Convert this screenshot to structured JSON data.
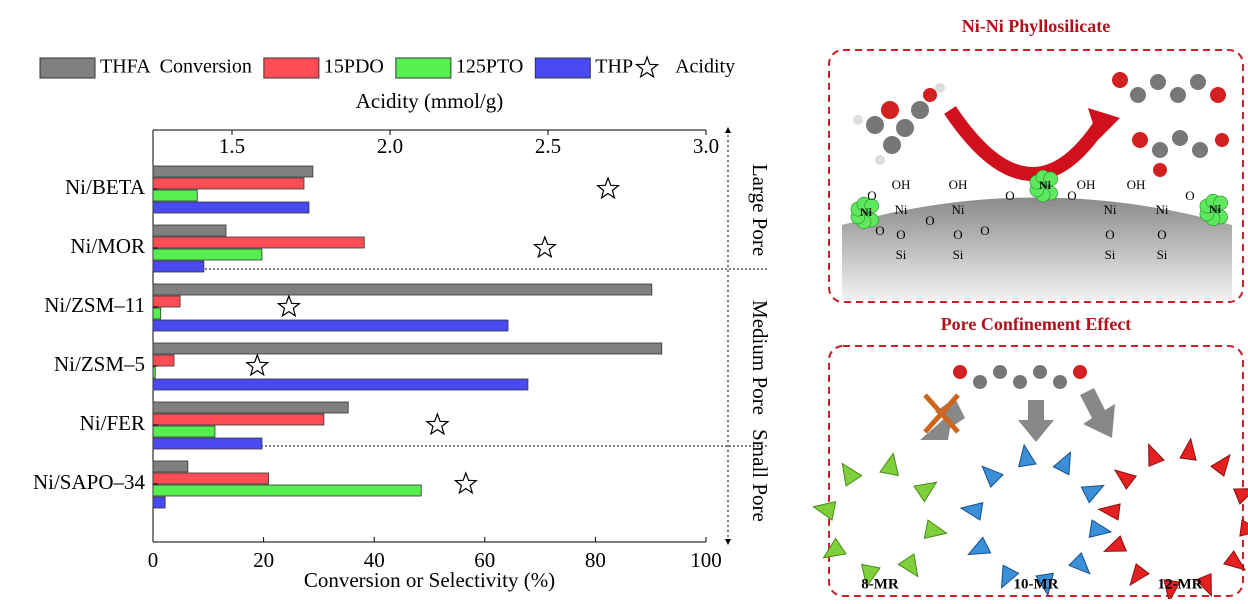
{
  "chart_data": {
    "type": "bar",
    "orientation": "horizontal",
    "xlabel": "Conversion or Selectivity (%)",
    "x2label": "Acidity (mmol/g)",
    "categories": [
      "Ni/BETA",
      "Ni/MOR",
      "Ni/ZSM–11",
      "Ni/ZSM–5",
      "Ni/FER",
      "Ni/SAPO–34"
    ],
    "series": [
      {
        "name": "THFA  Conversion",
        "color": "#808080",
        "values": [
          28.9,
          13.2,
          90.2,
          92.0,
          35.3,
          6.3
        ]
      },
      {
        "name": "15PDO",
        "color": "#ff4d55",
        "values": [
          27.3,
          38.2,
          4.9,
          3.8,
          30.9,
          20.9
        ]
      },
      {
        "name": "125PTO",
        "color": "#55f050",
        "values": [
          8.0,
          19.7,
          1.4,
          0.4,
          11.2,
          48.5
        ]
      },
      {
        "name": "THP",
        "color": "#4a4af2",
        "values": [
          28.2,
          9.2,
          64.2,
          67.8,
          19.7,
          2.2
        ]
      },
      {
        "name": "Acidity",
        "type": "scatter",
        "marker": "star",
        "axis": "x2",
        "color": "#000000",
        "values": [
          2.69,
          2.49,
          1.68,
          1.58,
          2.15,
          2.24
        ]
      }
    ],
    "xlim": [
      0,
      100
    ],
    "xticks": [
      0,
      20,
      40,
      60,
      80,
      100
    ],
    "x2lim": [
      1.25,
      3.0
    ],
    "x2ticks": [
      1.5,
      {
        "value": 2,
        "label": "2.0"
      },
      2.5,
      {
        "value": 3,
        "label": "3.0"
      }
    ],
    "region_labels": [
      "Large Pore",
      "Medium Pore",
      "Small Pore"
    ],
    "grid": false,
    "legend": "top"
  },
  "diagram": {
    "panels": [
      {
        "title": "Ni-Ni Phyllosilicate",
        "labels": [
          "Ni",
          "Ni",
          "Ni",
          "OH",
          "OH",
          "OH",
          "OH",
          "O",
          "Ni",
          "Ni",
          "Ni",
          "Ni",
          "O",
          "O",
          "O",
          "O",
          "O",
          "O",
          "O",
          "Si",
          "O",
          "Si",
          "O",
          "Si",
          "O",
          "Si"
        ]
      },
      {
        "title": "Pore Confinement Effect",
        "rings": [
          "8-MR",
          "10-MR",
          "12-MR"
        ]
      }
    ]
  }
}
